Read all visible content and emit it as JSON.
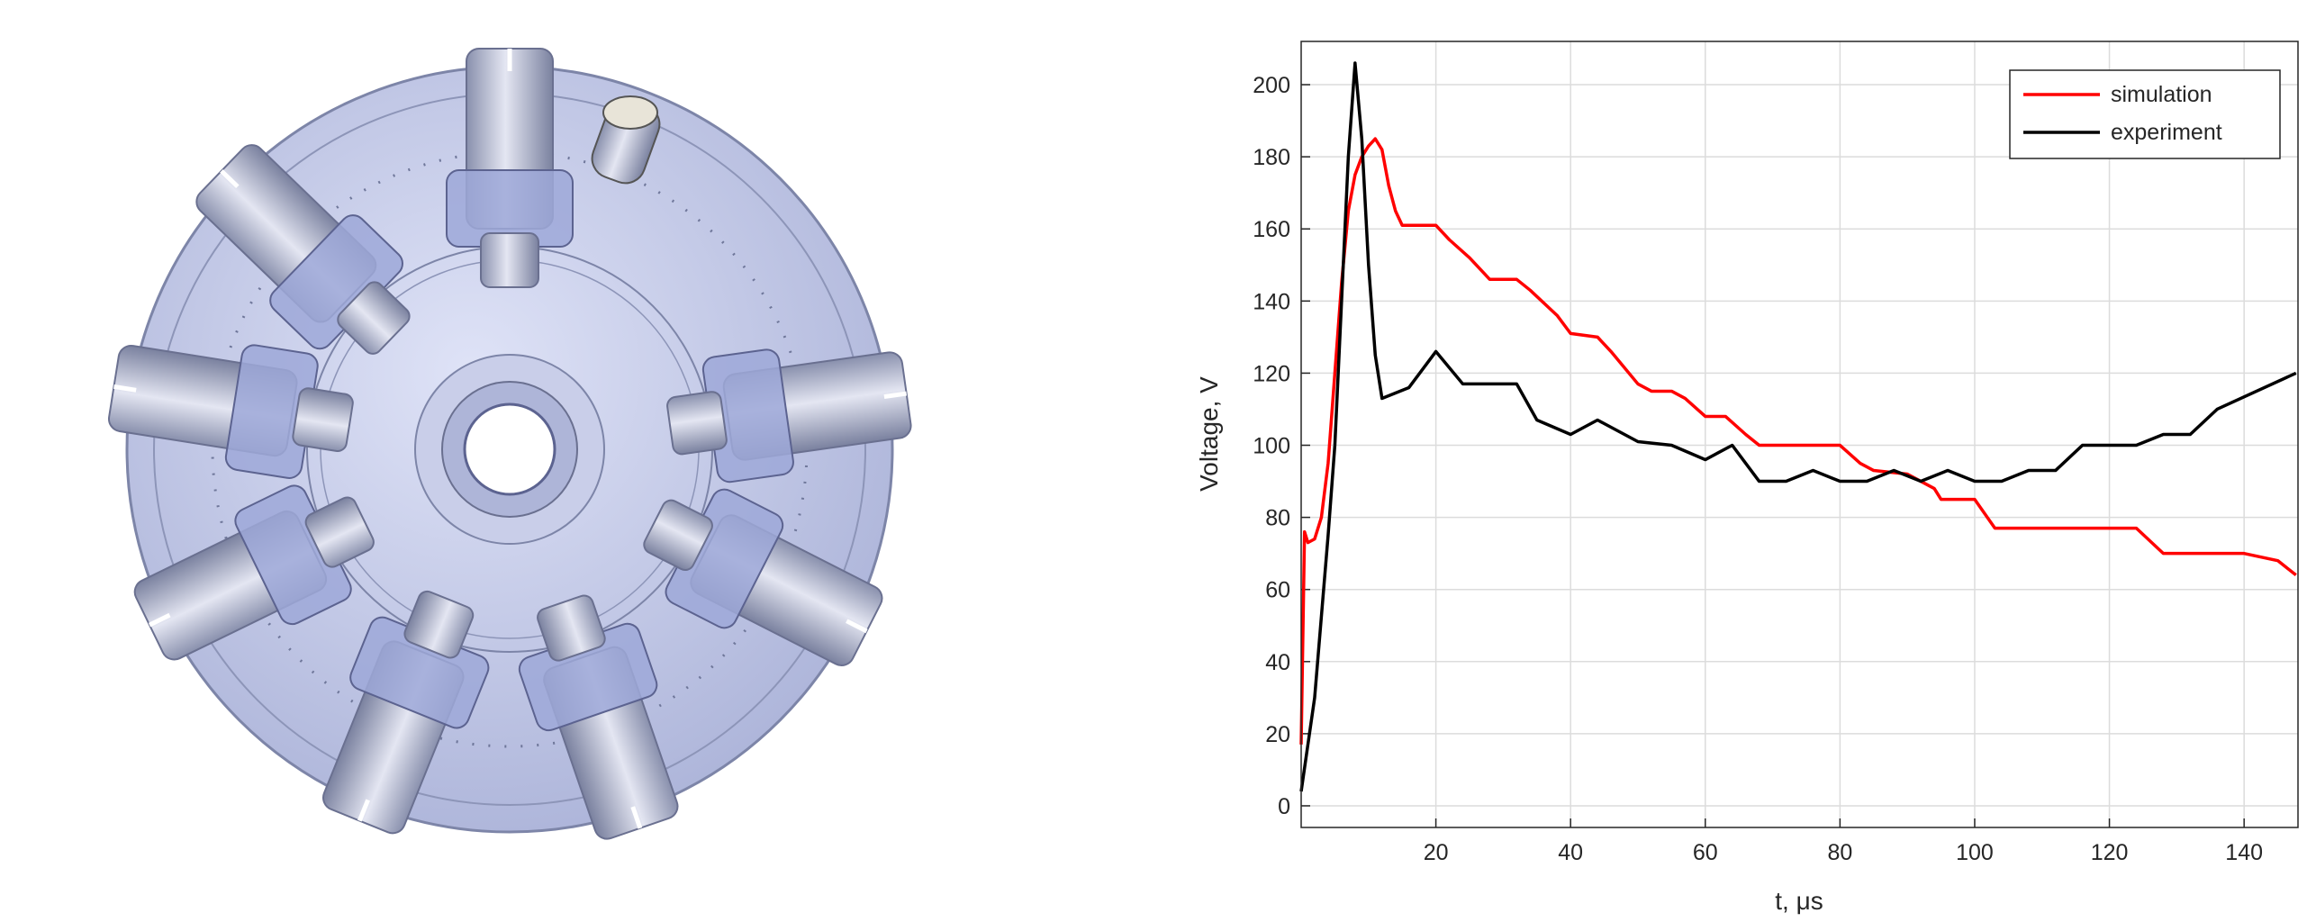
{
  "chart_data": {
    "type": "line",
    "xlabel": "t, μs",
    "ylabel": "Voltage, V",
    "xlim": [
      0,
      148
    ],
    "ylim": [
      -6,
      212
    ],
    "xticks": [
      20,
      40,
      60,
      80,
      100,
      120,
      140
    ],
    "yticks": [
      0,
      20,
      40,
      60,
      80,
      100,
      120,
      140,
      160,
      180,
      200
    ],
    "grid": true,
    "legend": "upper right",
    "series": [
      {
        "name": "simulation",
        "color": "#ff0000",
        "x": [
          0,
          0.5,
          1,
          2,
          3,
          4,
          5,
          6,
          7,
          8,
          9,
          10,
          11,
          12,
          13,
          14,
          15,
          20,
          22,
          25,
          28,
          32,
          34,
          38,
          40,
          44,
          46,
          50,
          52,
          55,
          57,
          60,
          63,
          66,
          68,
          80,
          83,
          85,
          90,
          94,
          95,
          100,
          103,
          124,
          128,
          140,
          145,
          147.7
        ],
        "values": [
          17,
          76,
          73,
          74,
          80,
          95,
          120,
          145,
          165,
          175,
          180,
          183,
          185,
          182,
          172,
          165,
          161,
          161,
          157,
          152,
          146,
          146,
          143,
          136,
          131,
          130,
          126,
          117,
          115,
          115,
          113,
          108,
          108,
          103,
          100,
          100,
          95,
          93,
          92,
          88,
          85,
          85,
          77,
          77,
          70,
          70,
          68,
          64
        ]
      },
      {
        "name": "experiment",
        "color": "#000000",
        "x": [
          0,
          2,
          4,
          5,
          6,
          7,
          8,
          9,
          10,
          11,
          12,
          16,
          20,
          24,
          32,
          35,
          40,
          44,
          50,
          55,
          60,
          64,
          68,
          72,
          76,
          80,
          84,
          88,
          92,
          96,
          100,
          104,
          108,
          112,
          116,
          124,
          128,
          132,
          136,
          147.7
        ],
        "values": [
          4,
          30,
          75,
          100,
          140,
          180,
          206,
          185,
          150,
          125,
          113,
          116,
          126,
          117,
          117,
          107,
          103,
          107,
          101,
          100,
          96,
          100,
          90,
          90,
          93,
          90,
          90,
          93,
          90,
          93,
          90,
          90,
          93,
          93,
          100,
          100,
          103,
          103,
          110,
          120
        ]
      }
    ]
  }
}
